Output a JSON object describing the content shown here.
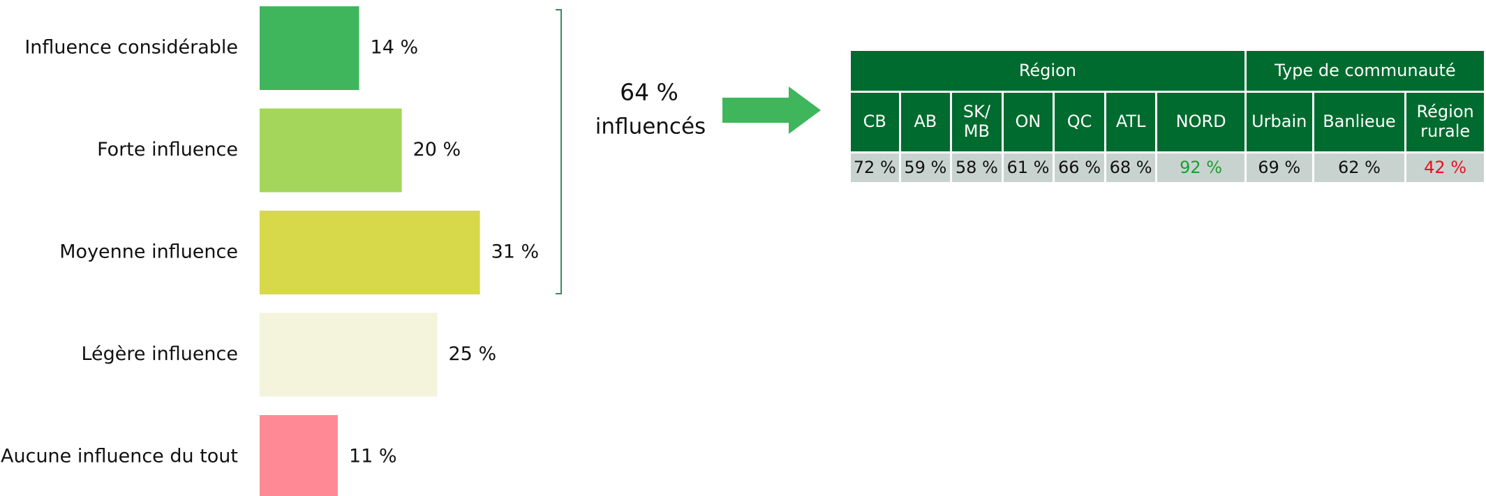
{
  "chart_data": {
    "type": "barh",
    "categories": [
      "Influence considérable",
      "Forte influence",
      "Moyenne influence",
      "Légère influence",
      "Aucune influence du tout"
    ],
    "values": [
      14,
      20,
      31,
      25,
      11
    ],
    "value_labels": [
      "14 %",
      "20 %",
      "31 %",
      "25 %",
      "11 %"
    ],
    "colors": [
      "#3fb65c",
      "#a3d65a",
      "#d7d84a",
      "#f4f3dc",
      "#ff8a96"
    ]
  },
  "annotation": {
    "value": "64 %",
    "text": "influencés",
    "color": "#3fb65c"
  },
  "table": {
    "groups": [
      {
        "name": "Région",
        "columns": [
          "CB",
          "AB",
          "SK/\nMB",
          "ON",
          "QC",
          "ATL",
          "NORD"
        ],
        "values": [
          "72 %",
          "59 %",
          "58 %",
          "61 %",
          "66 %",
          "68 %",
          "92 %"
        ],
        "value_colors": [
          null,
          null,
          null,
          null,
          null,
          null,
          "#1a9e2e"
        ]
      },
      {
        "name": "Type de communauté",
        "columns": [
          "Urbain",
          "Banlieue",
          "Région\nrurale"
        ],
        "values": [
          "69 %",
          "62 %",
          "42 %"
        ],
        "value_colors": [
          null,
          null,
          "#e8101e"
        ]
      }
    ]
  }
}
